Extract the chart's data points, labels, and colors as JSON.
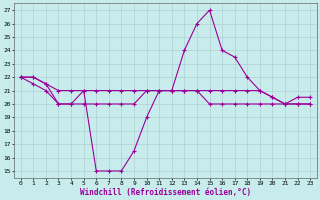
{
  "xlabel": "Windchill (Refroidissement éolien,°C)",
  "background_color": "#c8ecec",
  "grid_color": "#b0d0d0",
  "line_color": "#990099",
  "xlim": [
    -0.5,
    23.5
  ],
  "ylim": [
    14.5,
    27.5
  ],
  "yticks": [
    15,
    16,
    17,
    18,
    19,
    20,
    21,
    22,
    23,
    24,
    25,
    26,
    27
  ],
  "xticks": [
    0,
    1,
    2,
    3,
    4,
    5,
    6,
    7,
    8,
    9,
    10,
    11,
    12,
    13,
    14,
    15,
    16,
    17,
    18,
    19,
    20,
    21,
    22,
    23
  ],
  "series1": {
    "x": [
      0,
      1,
      2,
      3,
      4,
      5,
      6,
      7,
      8,
      9,
      10,
      11,
      12,
      13,
      14,
      15,
      16,
      17,
      18,
      19,
      20,
      21,
      22,
      23
    ],
    "y": [
      22,
      22,
      21.5,
      20,
      20,
      21,
      15,
      15,
      15,
      16.5,
      19,
      21,
      21,
      24,
      26,
      27,
      24,
      23.5,
      22,
      21,
      20.5,
      20,
      20.5,
      20.5
    ]
  },
  "series2": {
    "x": [
      0,
      1,
      2,
      3,
      4,
      5,
      6,
      7,
      8,
      9,
      10,
      11,
      12,
      13,
      14,
      15,
      16,
      17,
      18,
      19,
      20,
      21,
      22,
      23
    ],
    "y": [
      22,
      22,
      21.5,
      21,
      21,
      21,
      21,
      21,
      21,
      21,
      21,
      21,
      21,
      21,
      21,
      21,
      21,
      21,
      21,
      21,
      20.5,
      20,
      20,
      20
    ]
  },
  "series3": {
    "x": [
      0,
      1,
      2,
      3,
      4,
      5,
      6,
      7,
      8,
      9,
      10,
      11,
      12,
      13,
      14,
      15,
      16,
      17,
      18,
      19,
      20,
      21,
      22,
      23
    ],
    "y": [
      22,
      21.5,
      21,
      20,
      20,
      20,
      20,
      20,
      20,
      20,
      21,
      21,
      21,
      21,
      21,
      20,
      20,
      20,
      20,
      20,
      20,
      20,
      20,
      20
    ]
  }
}
